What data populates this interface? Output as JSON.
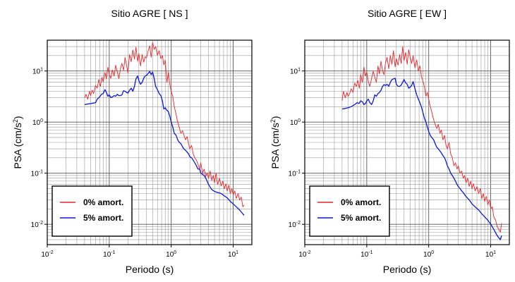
{
  "chart_data": [
    {
      "type": "line",
      "title": "Sitio AGRE [ NS ]",
      "xlabel": "Periodo (s)",
      "ylabel_base": "PSA (cm/s",
      "ylabel_exp": "2",
      "ylabel_end": ")",
      "xscale": "log",
      "yscale": "log",
      "xlim": [
        0.01,
        20
      ],
      "ylim": [
        0.004,
        40
      ],
      "grid": true,
      "legend_position": "bottom-left",
      "xticks": [
        {
          "value": 0.01,
          "base": "10",
          "exp": "-2"
        },
        {
          "value": 0.1,
          "base": "10",
          "exp": "-1"
        },
        {
          "value": 1,
          "base": "10",
          "exp": "0"
        },
        {
          "value": 10,
          "base": "10",
          "exp": "1"
        }
      ],
      "yticks": [
        {
          "value": 0.01,
          "base": "10",
          "exp": "-2"
        },
        {
          "value": 0.1,
          "base": "10",
          "exp": "-1"
        },
        {
          "value": 1,
          "base": "10",
          "exp": "0"
        },
        {
          "value": 10,
          "base": "10",
          "exp": "1"
        }
      ],
      "series": [
        {
          "name": "0% amort.",
          "color": "#e8252a",
          "x": [
            0.04,
            0.042,
            0.045,
            0.048,
            0.05,
            0.053,
            0.056,
            0.06,
            0.064,
            0.068,
            0.072,
            0.076,
            0.08,
            0.085,
            0.09,
            0.095,
            0.1,
            0.106,
            0.112,
            0.12,
            0.127,
            0.135,
            0.143,
            0.152,
            0.16,
            0.17,
            0.18,
            0.19,
            0.2,
            0.213,
            0.226,
            0.24,
            0.255,
            0.27,
            0.287,
            0.3,
            0.32,
            0.34,
            0.36,
            0.38,
            0.4,
            0.425,
            0.45,
            0.475,
            0.5,
            0.53,
            0.56,
            0.6,
            0.64,
            0.68,
            0.72,
            0.76,
            0.8,
            0.85,
            0.9,
            0.95,
            1.0,
            1.06,
            1.12,
            1.2,
            1.27,
            1.35,
            1.43,
            1.52,
            1.6,
            1.7,
            1.8,
            1.9,
            2.0,
            2.13,
            2.26,
            2.4,
            2.55,
            2.7,
            2.87,
            3.0,
            3.2,
            3.4,
            3.6,
            3.8,
            4.0,
            4.25,
            4.5,
            4.75,
            5.0,
            5.3,
            5.6,
            6.0,
            6.4,
            6.8,
            7.2,
            7.6,
            8.0,
            8.5,
            9.0,
            9.5,
            10.0,
            10.6,
            11.2,
            12.0,
            12.7,
            13.5,
            14.3,
            15.0
          ],
          "y": [
            3.0,
            3.5,
            2.8,
            4.0,
            3.3,
            4.2,
            3.6,
            5.2,
            4.6,
            6.8,
            5.0,
            7.5,
            6.1,
            9.3,
            7.0,
            11.8,
            8.5,
            7.2,
            10.5,
            8.0,
            13.0,
            9.6,
            7.1,
            11.2,
            14.1,
            10.3,
            18.5,
            13.0,
            9.2,
            21.0,
            15.2,
            25.8,
            17.0,
            29.0,
            15.5,
            22.0,
            12.5,
            21.0,
            14.8,
            19.0,
            18.0,
            25.0,
            31.0,
            18.5,
            36.0,
            26.5,
            30.0,
            20.3,
            25.1,
            17.5,
            20.1,
            13.2,
            16.3,
            6.0,
            9.5,
            5.5,
            4.0,
            3.2,
            2.0,
            1.4,
            1.0,
            0.78,
            0.6,
            0.68,
            0.56,
            0.45,
            0.52,
            0.38,
            0.3,
            0.35,
            0.24,
            0.2,
            0.18,
            0.15,
            0.12,
            0.16,
            0.1,
            0.12,
            0.086,
            0.1,
            0.08,
            0.11,
            0.072,
            0.09,
            0.065,
            0.1,
            0.06,
            0.08,
            0.056,
            0.07,
            0.05,
            0.062,
            0.045,
            0.058,
            0.04,
            0.05,
            0.038,
            0.045,
            0.032,
            0.04,
            0.03,
            0.034,
            0.022,
            0.024
          ]
        },
        {
          "name": "5% amort.",
          "color": "#0a18d8",
          "x": [
            0.04,
            0.045,
            0.05,
            0.056,
            0.06,
            0.064,
            0.07,
            0.075,
            0.08,
            0.085,
            0.09,
            0.095,
            0.1,
            0.106,
            0.112,
            0.12,
            0.127,
            0.135,
            0.143,
            0.152,
            0.16,
            0.17,
            0.18,
            0.19,
            0.2,
            0.213,
            0.226,
            0.24,
            0.255,
            0.27,
            0.287,
            0.3,
            0.32,
            0.34,
            0.36,
            0.38,
            0.4,
            0.425,
            0.45,
            0.475,
            0.5,
            0.53,
            0.56,
            0.6,
            0.64,
            0.68,
            0.72,
            0.76,
            0.8,
            0.85,
            0.9,
            0.95,
            1.0,
            1.06,
            1.12,
            1.2,
            1.27,
            1.35,
            1.43,
            1.52,
            1.6,
            1.7,
            1.8,
            1.9,
            2.0,
            2.13,
            2.26,
            2.4,
            2.55,
            2.7,
            2.87,
            3.0,
            3.2,
            3.4,
            3.6,
            3.8,
            4.0,
            4.5,
            5.0,
            5.6,
            6.4,
            7.2,
            8.0,
            9.0,
            10.0,
            11.2,
            12.7,
            14.3,
            15.0
          ],
          "y": [
            2.2,
            2.25,
            2.3,
            2.35,
            2.4,
            2.8,
            3.1,
            3.5,
            3.6,
            4.3,
            3.8,
            3.2,
            3.4,
            3.0,
            3.1,
            3.3,
            3.2,
            3.5,
            3.3,
            3.3,
            3.4,
            4.1,
            4.0,
            3.8,
            3.7,
            4.2,
            4.6,
            4.0,
            5.0,
            7.0,
            8.0,
            6.5,
            5.5,
            6.0,
            7.2,
            8.0,
            8.2,
            9.0,
            9.8,
            8.5,
            9.5,
            7.2,
            5.0,
            4.3,
            3.6,
            3.3,
            2.6,
            1.8,
            1.9,
            1.7,
            1.6,
            1.3,
            1.0,
            0.8,
            0.6,
            0.55,
            0.45,
            0.4,
            0.38,
            0.33,
            0.3,
            0.28,
            0.26,
            0.24,
            0.21,
            0.2,
            0.18,
            0.16,
            0.14,
            0.12,
            0.12,
            0.1,
            0.095,
            0.09,
            0.08,
            0.07,
            0.06,
            0.048,
            0.044,
            0.042,
            0.04,
            0.036,
            0.033,
            0.028,
            0.025,
            0.022,
            0.019,
            0.016,
            0.015
          ]
        }
      ]
    },
    {
      "type": "line",
      "title": "Sitio AGRE [ EW ]",
      "xlabel": "Periodo (s)",
      "ylabel_base": "PSA (cm/s",
      "ylabel_exp": "2",
      "ylabel_end": ")",
      "xscale": "log",
      "yscale": "log",
      "xlim": [
        0.01,
        20
      ],
      "ylim": [
        0.004,
        40
      ],
      "grid": true,
      "legend_position": "bottom-left",
      "xticks": [
        {
          "value": 0.01,
          "base": "10",
          "exp": "-2"
        },
        {
          "value": 0.1,
          "base": "10",
          "exp": "-1"
        },
        {
          "value": 1,
          "base": "10",
          "exp": "0"
        },
        {
          "value": 10,
          "base": "10",
          "exp": "1"
        }
      ],
      "yticks": [
        {
          "value": 0.01,
          "base": "10",
          "exp": "-2"
        },
        {
          "value": 0.1,
          "base": "10",
          "exp": "-1"
        },
        {
          "value": 1,
          "base": "10",
          "exp": "0"
        },
        {
          "value": 10,
          "base": "10",
          "exp": "1"
        }
      ],
      "series": [
        {
          "name": "0% amort.",
          "color": "#e8252a",
          "x": [
            0.04,
            0.042,
            0.045,
            0.048,
            0.05,
            0.053,
            0.056,
            0.06,
            0.064,
            0.068,
            0.072,
            0.076,
            0.08,
            0.085,
            0.09,
            0.095,
            0.1,
            0.106,
            0.112,
            0.12,
            0.127,
            0.135,
            0.143,
            0.152,
            0.16,
            0.17,
            0.18,
            0.19,
            0.2,
            0.213,
            0.226,
            0.24,
            0.255,
            0.27,
            0.287,
            0.3,
            0.32,
            0.34,
            0.36,
            0.38,
            0.4,
            0.425,
            0.45,
            0.475,
            0.5,
            0.53,
            0.56,
            0.6,
            0.64,
            0.68,
            0.72,
            0.76,
            0.8,
            0.85,
            0.9,
            0.95,
            1.0,
            1.06,
            1.12,
            1.2,
            1.27,
            1.35,
            1.43,
            1.52,
            1.6,
            1.7,
            1.8,
            1.9,
            2.0,
            2.13,
            2.26,
            2.4,
            2.55,
            2.7,
            2.87,
            3.0,
            3.2,
            3.4,
            3.6,
            3.8,
            4.0,
            4.25,
            4.5,
            4.75,
            5.0,
            5.3,
            5.6,
            6.0,
            6.4,
            6.8,
            7.2,
            7.6,
            8.0,
            8.5,
            9.0,
            9.5,
            10.0,
            10.6,
            11.2,
            12.0,
            12.7,
            13.5,
            14.3,
            15.0
          ],
          "y": [
            2.6,
            4.0,
            3.0,
            3.8,
            3.2,
            3.6,
            4.5,
            3.8,
            5.8,
            5.0,
            6.5,
            4.6,
            8.5,
            6.0,
            12.0,
            8.0,
            9.5,
            6.2,
            5.0,
            7.2,
            9.8,
            7.5,
            6.0,
            12.5,
            8.8,
            15.5,
            10.0,
            8.5,
            14.0,
            18.5,
            11.0,
            20.0,
            13.5,
            25.0,
            12.0,
            17.5,
            13.0,
            21.0,
            14.0,
            30.0,
            16.0,
            23.0,
            13.5,
            26.0,
            19.0,
            14.0,
            20.0,
            11.5,
            16.5,
            10.0,
            12.5,
            8.0,
            6.5,
            5.0,
            3.2,
            3.8,
            2.8,
            2.0,
            1.6,
            1.1,
            0.9,
            0.75,
            0.9,
            0.6,
            0.7,
            0.45,
            0.55,
            0.35,
            0.3,
            0.4,
            0.24,
            0.2,
            0.14,
            0.16,
            0.12,
            0.14,
            0.1,
            0.11,
            0.08,
            0.09,
            0.065,
            0.08,
            0.055,
            0.07,
            0.05,
            0.062,
            0.045,
            0.055,
            0.04,
            0.05,
            0.032,
            0.04,
            0.028,
            0.035,
            0.024,
            0.03,
            0.02,
            0.022,
            0.014,
            0.012,
            0.009,
            0.008,
            0.007,
            0.0105
          ]
        },
        {
          "name": "5% amort.",
          "color": "#0a18d8",
          "x": [
            0.04,
            0.045,
            0.05,
            0.056,
            0.06,
            0.064,
            0.07,
            0.075,
            0.08,
            0.085,
            0.09,
            0.095,
            0.1,
            0.106,
            0.112,
            0.12,
            0.127,
            0.135,
            0.143,
            0.152,
            0.16,
            0.17,
            0.18,
            0.19,
            0.2,
            0.213,
            0.226,
            0.24,
            0.255,
            0.27,
            0.287,
            0.3,
            0.32,
            0.34,
            0.36,
            0.38,
            0.4,
            0.425,
            0.45,
            0.475,
            0.5,
            0.53,
            0.56,
            0.6,
            0.64,
            0.68,
            0.72,
            0.76,
            0.8,
            0.85,
            0.9,
            0.95,
            1.0,
            1.06,
            1.12,
            1.2,
            1.27,
            1.35,
            1.43,
            1.52,
            1.6,
            1.7,
            1.8,
            1.9,
            2.0,
            2.13,
            2.26,
            2.4,
            2.55,
            2.7,
            2.87,
            3.0,
            3.2,
            3.4,
            3.6,
            3.8,
            4.0,
            4.5,
            5.0,
            5.6,
            6.4,
            7.2,
            8.0,
            9.0,
            10.0,
            11.2,
            12.7,
            14.3,
            15.0
          ],
          "y": [
            1.8,
            1.85,
            1.9,
            2.0,
            2.1,
            2.2,
            2.4,
            2.3,
            2.6,
            2.5,
            2.2,
            2.3,
            2.6,
            2.8,
            2.4,
            2.2,
            2.6,
            3.4,
            3.2,
            3.6,
            3.8,
            4.2,
            5.0,
            5.4,
            5.2,
            5.5,
            5.0,
            6.0,
            6.8,
            7.0,
            7.2,
            5.5,
            5.0,
            5.0,
            5.3,
            6.0,
            6.8,
            5.8,
            5.5,
            4.6,
            4.8,
            5.2,
            6.2,
            4.5,
            3.4,
            2.8,
            2.4,
            2.0,
            1.6,
            1.2,
            1.0,
            0.8,
            0.65,
            0.55,
            0.5,
            0.45,
            0.38,
            0.32,
            0.3,
            0.27,
            0.25,
            0.22,
            0.2,
            0.17,
            0.14,
            0.12,
            0.1,
            0.09,
            0.08,
            0.07,
            0.06,
            0.055,
            0.05,
            0.045,
            0.042,
            0.038,
            0.035,
            0.03,
            0.025,
            0.022,
            0.019,
            0.016,
            0.014,
            0.012,
            0.01,
            0.008,
            0.006,
            0.005,
            0.006
          ]
        }
      ]
    }
  ]
}
